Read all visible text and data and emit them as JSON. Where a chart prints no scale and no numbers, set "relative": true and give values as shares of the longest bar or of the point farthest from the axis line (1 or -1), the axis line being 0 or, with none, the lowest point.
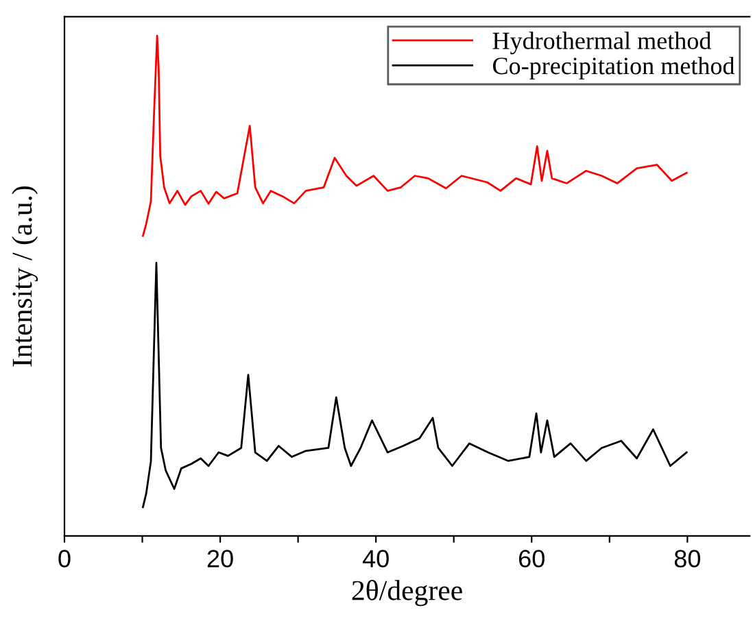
{
  "chart_data": {
    "type": "line",
    "relative": true,
    "xlabel": "2θ/degree",
    "ylabel": "Intensity / (a.u.)",
    "xlim": [
      0,
      88
    ],
    "xticks": [
      0,
      {
        "value": 10,
        "label": null
      },
      20,
      {
        "value": 30,
        "label": null
      },
      40,
      {
        "value": 50,
        "label": null
      },
      60,
      {
        "value": 70,
        "label": null
      },
      80
    ],
    "legend": "top right",
    "grid": false,
    "tick_labels": "x",
    "series": [
      {
        "name": "Hydrothermal method",
        "color": "#ff0000",
        "x": [
          10.08,
          10.5,
          11.1,
          11.5,
          11.9,
          12.1,
          12.3,
          12.8,
          13.5,
          14.5,
          15.5,
          16.3,
          17.5,
          18.5,
          19.5,
          20.5,
          22.2,
          23.8,
          24.5,
          25.5,
          26.5,
          28.0,
          29.5,
          31.0,
          33.3,
          34.7,
          36.2,
          37.5,
          39.7,
          41.5,
          43.2,
          45.0,
          46.7,
          49.0,
          51.0,
          54.3,
          56.0,
          58.0,
          59.9,
          60.7,
          61.3,
          62.0,
          62.6,
          64.5,
          67.0,
          69.0,
          71.0,
          73.5,
          76.1,
          78.0,
          79.9
        ],
        "values": [
          0.6,
          0.624,
          0.669,
          0.843,
          1.0,
          0.934,
          0.76,
          0.697,
          0.665,
          0.69,
          0.662,
          0.679,
          0.69,
          0.664,
          0.688,
          0.675,
          0.685,
          0.82,
          0.697,
          0.665,
          0.69,
          0.679,
          0.665,
          0.69,
          0.697,
          0.756,
          0.72,
          0.7,
          0.72,
          0.69,
          0.697,
          0.72,
          0.715,
          0.695,
          0.72,
          0.707,
          0.69,
          0.715,
          0.703,
          0.779,
          0.71,
          0.77,
          0.715,
          0.705,
          0.73,
          0.72,
          0.705,
          0.735,
          0.742,
          0.71,
          0.726
        ]
      },
      {
        "name": "Co-precipitation method",
        "color": "#000000",
        "x": [
          10.08,
          10.5,
          11.1,
          11.5,
          11.8,
          12.0,
          12.4,
          13.0,
          14.1,
          15.0,
          16.3,
          17.5,
          18.5,
          19.8,
          21.0,
          22.7,
          23.6,
          24.5,
          26.0,
          27.5,
          29.2,
          31.0,
          33.9,
          34.9,
          36.0,
          36.8,
          38.0,
          39.5,
          41.5,
          43.5,
          45.6,
          47.3,
          48.0,
          49.8,
          52.0,
          54.4,
          57.0,
          59.7,
          60.6,
          61.2,
          62.0,
          62.9,
          65.0,
          67.0,
          69.0,
          71.5,
          73.5,
          75.6,
          77.8,
          79.9
        ],
        "values": [
          0.0575,
          0.085,
          0.149,
          0.377,
          0.546,
          0.423,
          0.176,
          0.131,
          0.094,
          0.135,
          0.144,
          0.155,
          0.14,
          0.167,
          0.16,
          0.176,
          0.322,
          0.167,
          0.15,
          0.18,
          0.158,
          0.17,
          0.176,
          0.277,
          0.176,
          0.14,
          0.175,
          0.231,
          0.167,
          0.18,
          0.195,
          0.236,
          0.176,
          0.14,
          0.185,
          0.167,
          0.15,
          0.158,
          0.245,
          0.167,
          0.231,
          0.158,
          0.185,
          0.15,
          0.176,
          0.19,
          0.155,
          0.213,
          0.14,
          0.167
        ]
      }
    ]
  }
}
